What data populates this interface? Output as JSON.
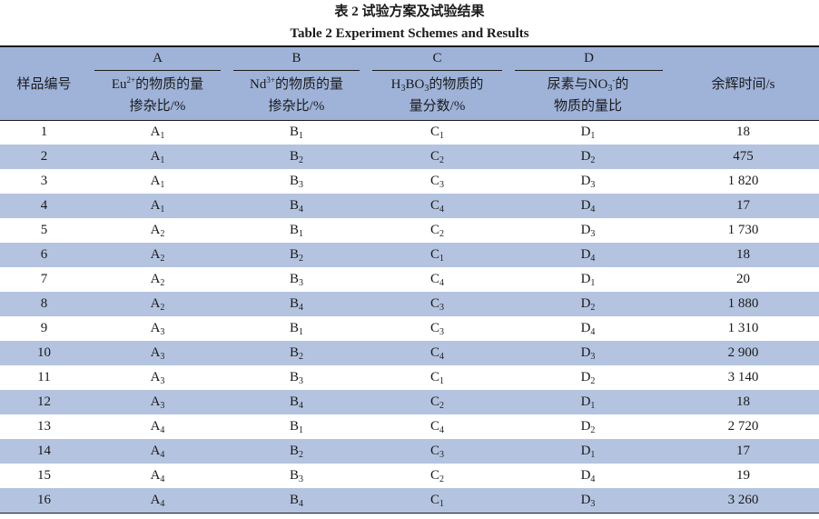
{
  "title": "表 2  试验方案及试验结果",
  "subtitle": "Table 2   Experiment Schemes and Results",
  "header": {
    "sample_no": "样品编号",
    "afterglow": "余辉时间/s",
    "factors": [
      {
        "letter": "A",
        "pre": "Eu",
        "sup": "2+",
        "post": "的物质的量",
        "line2": "掺杂比/%"
      },
      {
        "letter": "B",
        "pre": "Nd",
        "sup": "3+",
        "post": "的物质的量",
        "line2": "掺杂比/%"
      },
      {
        "letter": "C",
        "pre": "H",
        "sub1": "3",
        "mid": "BO",
        "sub2": "3",
        "post": "的物质的",
        "line2": "量分数/%"
      },
      {
        "letter": "D",
        "pre": "尿素与NO",
        "sub1": "3",
        "sup": "-",
        "post": "的",
        "line2": "物质的量比"
      }
    ]
  },
  "rows": [
    {
      "no": "1",
      "a": "1",
      "b": "1",
      "c": "1",
      "d": "1",
      "t": "18"
    },
    {
      "no": "2",
      "a": "1",
      "b": "2",
      "c": "2",
      "d": "2",
      "t": "475"
    },
    {
      "no": "3",
      "a": "1",
      "b": "3",
      "c": "3",
      "d": "3",
      "t": "1 820"
    },
    {
      "no": "4",
      "a": "1",
      "b": "4",
      "c": "4",
      "d": "4",
      "t": "17"
    },
    {
      "no": "5",
      "a": "2",
      "b": "1",
      "c": "2",
      "d": "3",
      "t": "1 730"
    },
    {
      "no": "6",
      "a": "2",
      "b": "2",
      "c": "1",
      "d": "4",
      "t": "18"
    },
    {
      "no": "7",
      "a": "2",
      "b": "3",
      "c": "4",
      "d": "1",
      "t": "20"
    },
    {
      "no": "8",
      "a": "2",
      "b": "4",
      "c": "3",
      "d": "2",
      "t": "1 880"
    },
    {
      "no": "9",
      "a": "3",
      "b": "1",
      "c": "3",
      "d": "4",
      "t": "1 310"
    },
    {
      "no": "10",
      "a": "3",
      "b": "2",
      "c": "4",
      "d": "3",
      "t": "2 900"
    },
    {
      "no": "11",
      "a": "3",
      "b": "3",
      "c": "1",
      "d": "2",
      "t": "3 140"
    },
    {
      "no": "12",
      "a": "3",
      "b": "4",
      "c": "2",
      "d": "1",
      "t": "18"
    },
    {
      "no": "13",
      "a": "4",
      "b": "1",
      "c": "4",
      "d": "2",
      "t": "2 720"
    },
    {
      "no": "14",
      "a": "4",
      "b": "2",
      "c": "3",
      "d": "1",
      "t": "17"
    },
    {
      "no": "15",
      "a": "4",
      "b": "3",
      "c": "2",
      "d": "4",
      "t": "19"
    },
    {
      "no": "16",
      "a": "4",
      "b": "4",
      "c": "1",
      "d": "3",
      "t": "3 260"
    }
  ],
  "colors": {
    "header_bg": "#9fb3d9",
    "stripe_bg": "#b4c4e0"
  }
}
